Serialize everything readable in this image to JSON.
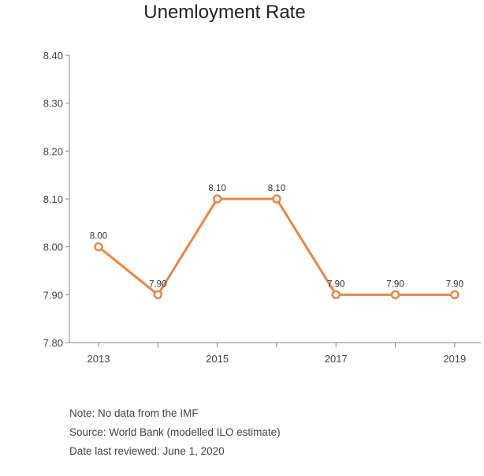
{
  "chart_data": {
    "type": "line",
    "title": "Unemloyment Rate",
    "xlabel": "",
    "ylabel": "",
    "x": [
      2013,
      2014,
      2015,
      2016,
      2017,
      2018,
      2019
    ],
    "x_tick_labels": [
      "2013",
      "",
      "2015",
      "",
      "2017",
      "",
      "2019"
    ],
    "y_ticks": [
      "7.80",
      "7.90",
      "8.00",
      "8.10",
      "8.20",
      "8.30",
      "8.40"
    ],
    "ylim": [
      7.8,
      8.4
    ],
    "grid": false,
    "legend": "none",
    "color": "#e4884b",
    "series": [
      {
        "values": [
          8.0,
          7.9,
          8.1,
          8.1,
          7.9,
          7.9,
          7.9
        ],
        "labels": [
          "8.00",
          "7.90",
          "8.10",
          "8.10",
          "7.90",
          "7.90",
          "7.90"
        ]
      }
    ]
  },
  "notes": {
    "line1": "Note: No data from the IMF",
    "line2": "Source: World Bank (modelled ILO estimate)",
    "line3": "Date last reviewed: June 1, 2020"
  }
}
